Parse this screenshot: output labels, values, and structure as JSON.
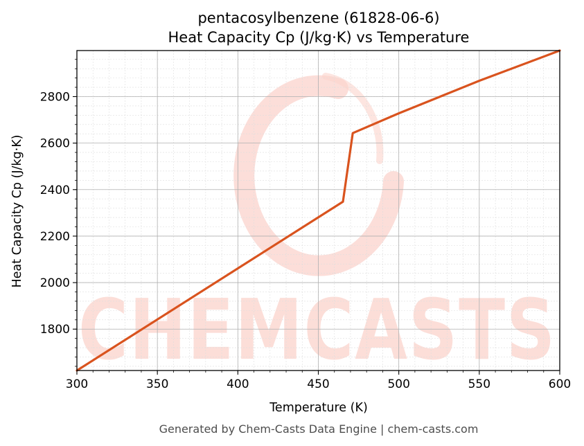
{
  "chart_data": {
    "type": "line",
    "title_line1": "pentacosylbenzene (61828-06-6)",
    "title_line2": "Heat Capacity Cp (J/kg·K) vs Temperature",
    "xlabel": "Temperature (K)",
    "ylabel": "Heat Capacity Cp (J/kg·K)",
    "xlim": [
      300,
      600
    ],
    "ylim": [
      1622,
      2998
    ],
    "x_ticks": [
      300,
      350,
      400,
      450,
      500,
      550,
      600
    ],
    "y_ticks": [
      1800,
      2000,
      2200,
      2400,
      2600,
      2800
    ],
    "grid": true,
    "line_color": "#d9531e",
    "series": [
      {
        "x": [
          300,
          465.3,
          471.4,
          500,
          550,
          600
        ],
        "y": [
          1622,
          2348,
          2643,
          2728,
          2868,
          2998
        ]
      }
    ]
  },
  "watermark": {
    "text": "CHEMCASTS",
    "color": "#fbd3cc"
  },
  "footer": "Generated by Chem-Casts Data Engine | chem-casts.com"
}
